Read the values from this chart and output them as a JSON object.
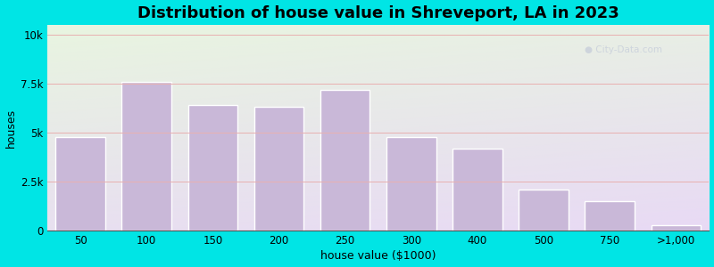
{
  "title": "Distribution of house value in Shreveport, LA in 2023",
  "xlabel": "house value ($1000)",
  "ylabel": "houses",
  "categories": [
    "50",
    "100",
    "150",
    "200",
    "250",
    "300",
    "400",
    "500",
    "750",
    ">1,000"
  ],
  "x_positions": [
    0,
    1,
    2,
    3,
    4,
    5,
    6,
    7,
    8,
    9
  ],
  "values": [
    4800,
    7600,
    6400,
    6300,
    7200,
    4800,
    4200,
    2100,
    1500,
    300
  ],
  "bar_color": "#c9b8d8",
  "bar_edge_color": "#ffffff",
  "background_color": "#00e5e5",
  "plot_bg_top_left": "#e8f5e0",
  "plot_bg_bottom_right": "#dce8f5",
  "yticks": [
    0,
    2500,
    5000,
    7500,
    10000
  ],
  "ytick_labels": [
    "0",
    "2.5k",
    "5k",
    "7.5k",
    "10k"
  ],
  "ylim": [
    0,
    10500
  ],
  "title_fontsize": 13,
  "axis_label_fontsize": 9,
  "tick_fontsize": 8.5,
  "bar_width": 0.75,
  "grid_color": "#e8b0b0",
  "watermark_text": "City-Data.com",
  "watermark_color": "#c0c8d8",
  "watermark_alpha": 0.65
}
